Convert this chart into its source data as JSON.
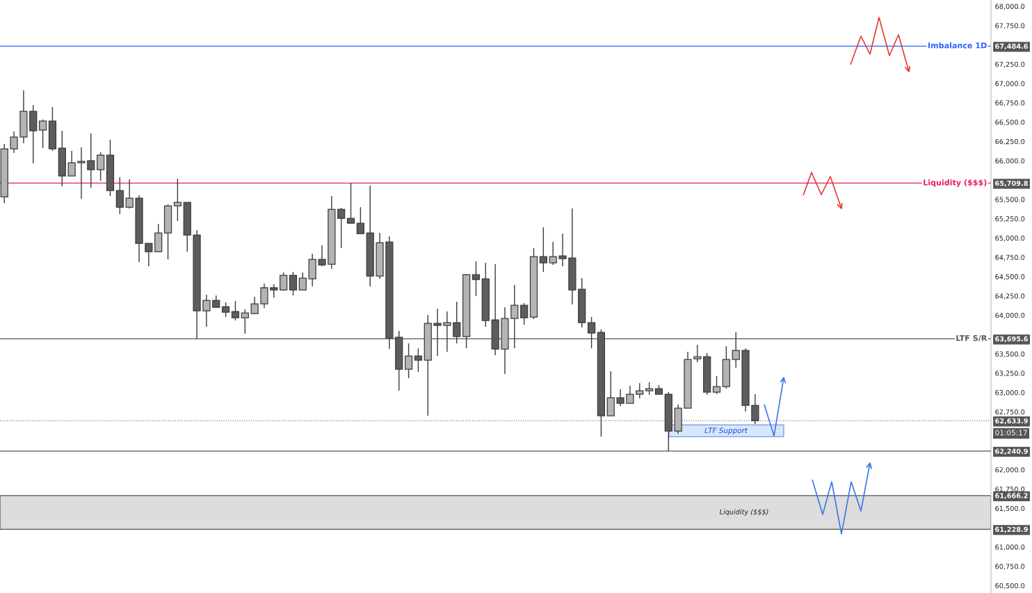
{
  "chart_data": {
    "type": "candlestick",
    "categories": [
      null,
      null,
      null,
      null,
      null,
      null,
      null,
      null,
      null,
      null,
      null,
      null,
      null,
      null,
      null,
      null,
      null,
      null,
      null,
      null,
      null,
      null,
      null,
      null,
      null,
      null,
      null,
      null,
      null,
      null,
      null,
      null,
      null,
      null,
      null,
      null,
      null,
      null,
      null,
      null,
      null,
      null,
      null,
      null,
      null,
      null,
      null,
      null,
      null,
      null,
      null,
      null,
      null,
      null,
      null,
      null,
      null,
      null,
      null,
      null,
      null,
      null,
      null,
      null,
      null,
      null,
      null,
      null,
      null,
      null,
      null,
      null,
      null,
      null,
      null,
      null,
      null,
      null,
      null,
      null,
      null,
      null,
      null,
      null,
      null,
      null,
      null,
      null,
      null,
      null,
      null,
      null,
      null,
      null,
      null,
      null,
      null,
      null,
      null,
      null,
      null,
      null,
      null
    ],
    "ohlc": [
      [
        65534,
        66218,
        65453,
        66155
      ],
      [
        66155,
        66380,
        66101,
        66308
      ],
      [
        66308,
        66911,
        66227,
        66641
      ],
      [
        66641,
        66722,
        65966,
        66389
      ],
      [
        66398,
        66533,
        66164,
        66515
      ],
      [
        66515,
        66695,
        66128,
        66155
      ],
      [
        66164,
        66389,
        65669,
        65804
      ],
      [
        65804,
        66128,
        65804,
        65975
      ],
      [
        65975,
        66173,
        65507,
        65993
      ],
      [
        66002,
        66353,
        65651,
        65885
      ],
      [
        65885,
        66110,
        65741,
        66074
      ],
      [
        66074,
        66272,
        65543,
        65615
      ],
      [
        65615,
        65786,
        65309,
        65399
      ],
      [
        65399,
        65759,
        65381,
        65516
      ],
      [
        65516,
        65552,
        64688,
        64931
      ],
      [
        64931,
        64931,
        64634,
        64823
      ],
      [
        64823,
        65183,
        64823,
        65066
      ],
      [
        65066,
        65435,
        64724,
        65417
      ],
      [
        65417,
        65768,
        65219,
        65462
      ],
      [
        65462,
        65462,
        64823,
        65039
      ],
      [
        65039,
        65102,
        63698,
        64058
      ],
      [
        64058,
        64265,
        63851,
        64193
      ],
      [
        64193,
        64256,
        64103,
        64103
      ],
      [
        64112,
        64166,
        63977,
        64040
      ],
      [
        64049,
        64184,
        63932,
        63968
      ],
      [
        63968,
        64076,
        63761,
        64031
      ],
      [
        64022,
        64238,
        64022,
        64148
      ],
      [
        64148,
        64409,
        64094,
        64355
      ],
      [
        64355,
        64400,
        64229,
        64328
      ],
      [
        64328,
        64553,
        64319,
        64517
      ],
      [
        64517,
        64562,
        64256,
        64328
      ],
      [
        64328,
        64553,
        64328,
        64481
      ],
      [
        64472,
        64796,
        64373,
        64724
      ],
      [
        64724,
        64904,
        64634,
        64652
      ],
      [
        64661,
        65543,
        64598,
        65372
      ],
      [
        65372,
        65390,
        64868,
        65255
      ],
      [
        65255,
        65714,
        65192,
        65192
      ],
      [
        65192,
        65399,
        65057,
        65057
      ],
      [
        65066,
        65678,
        64373,
        64508
      ],
      [
        64508,
        65066,
        64472,
        64940
      ],
      [
        64949,
        65021,
        63563,
        63707
      ],
      [
        63716,
        63797,
        63023,
        63302
      ],
      [
        63302,
        63635,
        63185,
        63473
      ],
      [
        63473,
        63572,
        63266,
        63419
      ],
      [
        63419,
        64004,
        62699,
        63896
      ],
      [
        63896,
        64085,
        63473,
        63869
      ],
      [
        63869,
        64049,
        63527,
        63905
      ],
      [
        63905,
        64175,
        63635,
        63725
      ],
      [
        63725,
        64535,
        63572,
        64526
      ],
      [
        64526,
        64697,
        64247,
        64463
      ],
      [
        64472,
        64679,
        63851,
        63932
      ],
      [
        63941,
        64661,
        63482,
        63563
      ],
      [
        63563,
        64103,
        63239,
        63959
      ],
      [
        63959,
        64391,
        63572,
        64130
      ],
      [
        64130,
        64157,
        63878,
        63968
      ],
      [
        63977,
        64868,
        63950,
        64760
      ],
      [
        64760,
        65138,
        64562,
        64679
      ],
      [
        64679,
        64949,
        64652,
        64760
      ],
      [
        64769,
        65057,
        64634,
        64733
      ],
      [
        64742,
        65381,
        64139,
        64328
      ],
      [
        64337,
        64481,
        63842,
        63905
      ],
      [
        63905,
        63977,
        63572,
        63770
      ],
      [
        63779,
        63815,
        62429,
        62699
      ],
      [
        62699,
        63275,
        62699,
        62933
      ],
      [
        62933,
        63041,
        62825,
        62861
      ],
      [
        62861,
        63086,
        62861,
        62978
      ],
      [
        62978,
        63122,
        62924,
        63023
      ],
      [
        63023,
        63131,
        62969,
        63050
      ],
      [
        63050,
        63095,
        62978,
        62978
      ],
      [
        62978,
        63005,
        62240.9,
        62501
      ],
      [
        62501,
        62843,
        62465,
        62798
      ],
      [
        62798,
        63527,
        62798,
        63428
      ],
      [
        63437,
        63617,
        63392,
        63464
      ],
      [
        63464,
        63509,
        62969,
        63005
      ],
      [
        63005,
        63212,
        62978,
        63077
      ],
      [
        63077,
        63599,
        63050,
        63428
      ],
      [
        63428,
        63779,
        63320,
        63545
      ],
      [
        63545,
        63572,
        62753,
        62834
      ],
      [
        62834,
        62978,
        62591,
        62633.9
      ],
      null,
      null,
      null,
      null,
      null,
      null,
      null,
      null,
      null,
      null,
      null,
      null,
      null,
      null,
      null,
      null,
      null,
      null,
      null,
      null,
      null,
      null,
      null,
      null
    ],
    "colors": [
      "#b4b4b4",
      "#b4b4b4",
      "#b4b4b4",
      "#5d5d5d",
      "#b4b4b4",
      "#5d5d5d",
      "#5d5d5d",
      "#b4b4b4",
      "#b4b4b4",
      "#5d5d5d",
      "#b4b4b4",
      "#5d5d5d",
      "#5d5d5d",
      "#b4b4b4",
      "#5d5d5d",
      "#5d5d5d",
      "#b4b4b4",
      "#b4b4b4",
      "#b4b4b4",
      "#5d5d5d",
      "#5d5d5d",
      "#b4b4b4",
      "#5d5d5d",
      "#5d5d5d",
      "#5d5d5d",
      "#b4b4b4",
      "#b4b4b4",
      "#b4b4b4",
      "#5d5d5d",
      "#b4b4b4",
      "#5d5d5d",
      "#b4b4b4",
      "#b4b4b4",
      "#5d5d5d",
      "#b4b4b4",
      "#5d5d5d",
      "#5d5d5d",
      "#5d5d5d",
      "#5d5d5d",
      "#b4b4b4",
      "#5d5d5d",
      "#5d5d5d",
      "#b4b4b4",
      "#5d5d5d",
      "#b4b4b4",
      "#5d5d5d",
      "#b4b4b4",
      "#5d5d5d",
      "#b4b4b4",
      "#5d5d5d",
      "#5d5d5d",
      "#5d5d5d",
      "#b4b4b4",
      "#b4b4b4",
      "#5d5d5d",
      "#b4b4b4",
      "#5d5d5d",
      "#b4b4b4",
      "#5d5d5d",
      "#5d5d5d",
      "#5d5d5d",
      "#5d5d5d",
      "#5d5d5d",
      "#b4b4b4",
      "#5d5d5d",
      "#b4b4b4",
      "#b4b4b4",
      "#b4b4b4",
      "#5d5d5d",
      "#5d5d5d",
      "#b4b4b4",
      "#b4b4b4",
      "#b4b4b4",
      "#5d5d5d",
      "#b4b4b4",
      "#b4b4b4",
      "#b4b4b4",
      "#5d5d5d",
      "#5d5d5d",
      null,
      null,
      null,
      null,
      null,
      null,
      null,
      null,
      null,
      null,
      null,
      null,
      null,
      null,
      null,
      null,
      null,
      null,
      null,
      null,
      null,
      null,
      null,
      null
    ],
    "ylim": [
      60404,
      68081
    ],
    "yticks": [
      {
        "value": 60500,
        "label": "60,500.0"
      },
      {
        "value": 60750,
        "label": "60,750.0"
      },
      {
        "value": 61000,
        "label": "61,000.0"
      },
      {
        "value": 61500,
        "label": "61,500.0"
      },
      {
        "value": 61750,
        "label": "61,750.0"
      },
      {
        "value": 62000,
        "label": "62,000.0"
      },
      {
        "value": 62750,
        "label": "62,750.0"
      },
      {
        "value": 63000,
        "label": "63,000.0"
      },
      {
        "value": 63250,
        "label": "63,250.0"
      },
      {
        "value": 63500,
        "label": "63,500.0"
      },
      {
        "value": 64000,
        "label": "64,000.0"
      },
      {
        "value": 64250,
        "label": "64,250.0"
      },
      {
        "value": 64500,
        "label": "64,500.0"
      },
      {
        "value": 64750,
        "label": "64,750.0"
      },
      {
        "value": 65000,
        "label": "65,000.0"
      },
      {
        "value": 65250,
        "label": "65,250.0"
      },
      {
        "value": 65500,
        "label": "65,500.0"
      },
      {
        "value": 66000,
        "label": "66,000.0"
      },
      {
        "value": 66250,
        "label": "66,250.0"
      },
      {
        "value": 66500,
        "label": "66,500.0"
      },
      {
        "value": 66750,
        "label": "66,750.0"
      },
      {
        "value": 67000,
        "label": "67,000.0"
      },
      {
        "value": 67250,
        "label": "67,250.0"
      },
      {
        "value": 67750,
        "label": "67,750.0"
      },
      {
        "value": 68000,
        "label": "68,000.0"
      },
      {
        "value": 67484.6,
        "label": "67,484.6"
      },
      {
        "value": 65709.8,
        "label": "65,709.8"
      },
      {
        "value": 63695.6,
        "label": "63,695.6"
      },
      {
        "value": 62633.9,
        "label": "62,633.9"
      },
      {
        "value": 62240.9,
        "label": "62,240.9"
      },
      {
        "value": 61666.2,
        "label": "61,666.2"
      },
      {
        "value": 61228.9,
        "label": "61,228.9"
      }
    ],
    "ref_lines": [
      {
        "axis": "y",
        "value": 67484.6,
        "label": "Imbalance 1D",
        "color": "#2962ff"
      },
      {
        "axis": "y",
        "value": 65709.8,
        "label": "Liquidity ($$$)",
        "color": "#e91e63"
      },
      {
        "axis": "y",
        "value": 63695.6,
        "label": "LTF S/R",
        "color": "#555555"
      },
      {
        "axis": "y",
        "value": 62633.9,
        "label": null,
        "line_style": "dotted",
        "color": "#777777"
      },
      {
        "axis": "y",
        "value": 62240.9,
        "label": null,
        "color": "#555555"
      }
    ],
    "bands": [
      {
        "axis": "y",
        "from": 61228.9,
        "to": 61666.2,
        "label": "Liquidity ($$$)",
        "color": "#dddddd"
      }
    ],
    "annotations": [
      "LTF Support",
      "01:05:17"
    ]
  }
}
